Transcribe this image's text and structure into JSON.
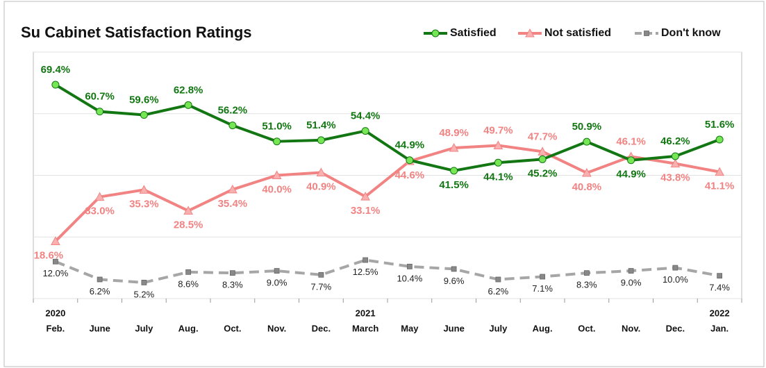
{
  "chart_data": {
    "type": "line",
    "title": "Su Cabinet Satisfaction Ratings",
    "categories": [
      "Feb.",
      "June",
      "July",
      "Aug.",
      "Oct.",
      "Nov.",
      "Dec.",
      "March",
      "May",
      "June",
      "July",
      "Aug.",
      "Oct.",
      "Nov.",
      "Dec.",
      "Jan."
    ],
    "years": [
      "2020",
      null,
      null,
      null,
      null,
      null,
      null,
      "2021",
      null,
      null,
      null,
      null,
      null,
      null,
      null,
      "2022"
    ],
    "ylim": [
      0,
      80
    ],
    "yticks": [
      0,
      20,
      40,
      60,
      80
    ],
    "grid": true,
    "legend": "top-right",
    "series": [
      {
        "name": "Satisfied",
        "color": "#127712",
        "marker": "circle",
        "marker_color": "#77e655",
        "values": [
          69.4,
          60.7,
          59.6,
          62.8,
          56.2,
          51.0,
          51.4,
          54.4,
          44.9,
          41.5,
          44.1,
          45.2,
          50.9,
          44.9,
          46.2,
          51.6
        ],
        "value_labels": [
          "69.4%",
          "60.7%",
          "59.6%",
          "62.8%",
          "56.2%",
          "51.0%",
          "51.4%",
          "54.4%",
          "44.9%",
          "41.5%",
          "44.1%",
          "45.2%",
          "50.9%",
          "44.9%",
          "46.2%",
          "51.6%"
        ]
      },
      {
        "name": "Not satisfied",
        "color": "#f28383",
        "marker": "triangle",
        "marker_color": "#f8b0b0",
        "values": [
          18.6,
          33.0,
          35.3,
          28.5,
          35.4,
          40.0,
          40.9,
          33.1,
          44.6,
          48.9,
          49.7,
          47.7,
          40.8,
          46.1,
          43.8,
          41.1
        ],
        "value_labels": [
          "18.6%",
          "33.0%",
          "35.3%",
          "28.5%",
          "35.4%",
          "40.0%",
          "40.9%",
          "33.1%",
          "44.6%",
          "48.9%",
          "49.7%",
          "47.7%",
          "40.8%",
          "46.1%",
          "43.8%",
          "41.1%"
        ]
      },
      {
        "name": "Don't know",
        "color": "#a6a6a6",
        "marker": "square",
        "marker_color": "#888888",
        "dashed": true,
        "values": [
          12.0,
          6.2,
          5.2,
          8.6,
          8.3,
          9.0,
          7.7,
          12.5,
          10.4,
          9.6,
          6.2,
          7.1,
          8.3,
          9.0,
          10.0,
          7.4
        ],
        "value_labels": [
          "12.0%",
          "6.2%",
          "5.2%",
          "8.6%",
          "8.3%",
          "9.0%",
          "7.7%",
          "12.5%",
          "10.4%",
          "9.6%",
          "6.2%",
          "7.1%",
          "8.3%",
          "9.0%",
          "10.0%",
          "7.4%"
        ]
      }
    ]
  }
}
